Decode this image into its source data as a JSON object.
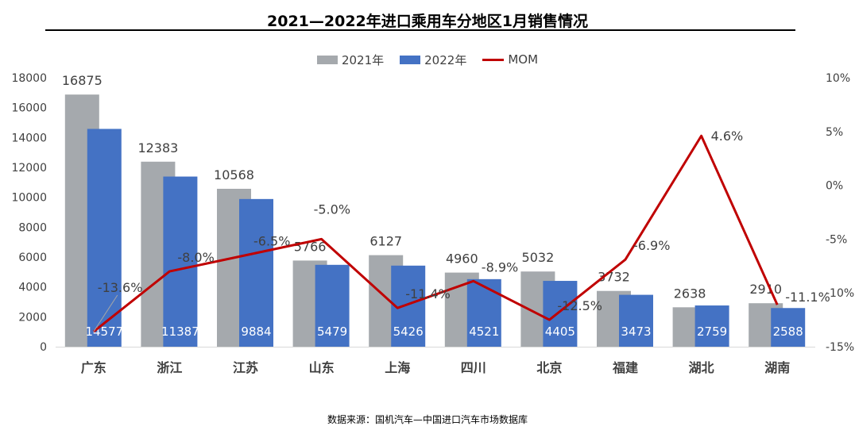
{
  "chart_data": {
    "type": "bar",
    "title": "2021—2022年进口乘用车分地区1月销售情况",
    "categories": [
      "广东",
      "浙江",
      "江苏",
      "山东",
      "上海",
      "四川",
      "北京",
      "福建",
      "湖北",
      "湖南"
    ],
    "series": [
      {
        "name": "2021年",
        "type": "bar",
        "axis": "left",
        "color": "#a5a9ad",
        "values": [
          16875,
          12383,
          10568,
          5766,
          6127,
          4960,
          5032,
          3732,
          2638,
          2910
        ]
      },
      {
        "name": "2022年",
        "type": "bar",
        "axis": "left",
        "color": "#4472c4",
        "values": [
          14577,
          11387,
          9884,
          5479,
          5426,
          4521,
          4405,
          3473,
          2759,
          2588
        ]
      },
      {
        "name": "MOM",
        "type": "line",
        "axis": "right",
        "color": "#c00000",
        "values": [
          -13.6,
          -8.0,
          -6.5,
          -5.0,
          -11.4,
          -8.9,
          -12.5,
          -6.9,
          4.6,
          -11.1
        ]
      }
    ],
    "y_left": {
      "min": 0,
      "max": 18000,
      "ticks": [
        "0",
        "2000",
        "4000",
        "6000",
        "8000",
        "10000",
        "12000",
        "14000",
        "16000",
        "18000"
      ]
    },
    "y_right": {
      "min": -15,
      "max": 10,
      "ticks": [
        "-15%",
        "-10%",
        "-5%",
        "0%",
        "5%",
        "10%"
      ]
    },
    "bar_labels_2021": [
      "16875",
      "12383",
      "10568",
      "5766",
      "6127",
      "4960",
      "5032",
      "3732",
      "2638",
      "2910"
    ],
    "bar_labels_2022": [
      "14577",
      "11387",
      "9884",
      "5479",
      "5426",
      "4521",
      "4405",
      "3473",
      "2759",
      "2588"
    ],
    "line_labels": [
      "-13.6%",
      "-8.0%",
      "-6.5%",
      "-5.0%",
      "-11.4%",
      "-8.9%",
      "-12.5%",
      "-6.9%",
      "4.6%",
      "-11.1%"
    ],
    "legend_position": "top",
    "grid": false
  },
  "legend": {
    "item_2021": "2021年",
    "item_2022": "2022年",
    "item_mom": "MOM"
  },
  "source_note": "数据来源：国机汽车—中国进口汽车市场数据库"
}
